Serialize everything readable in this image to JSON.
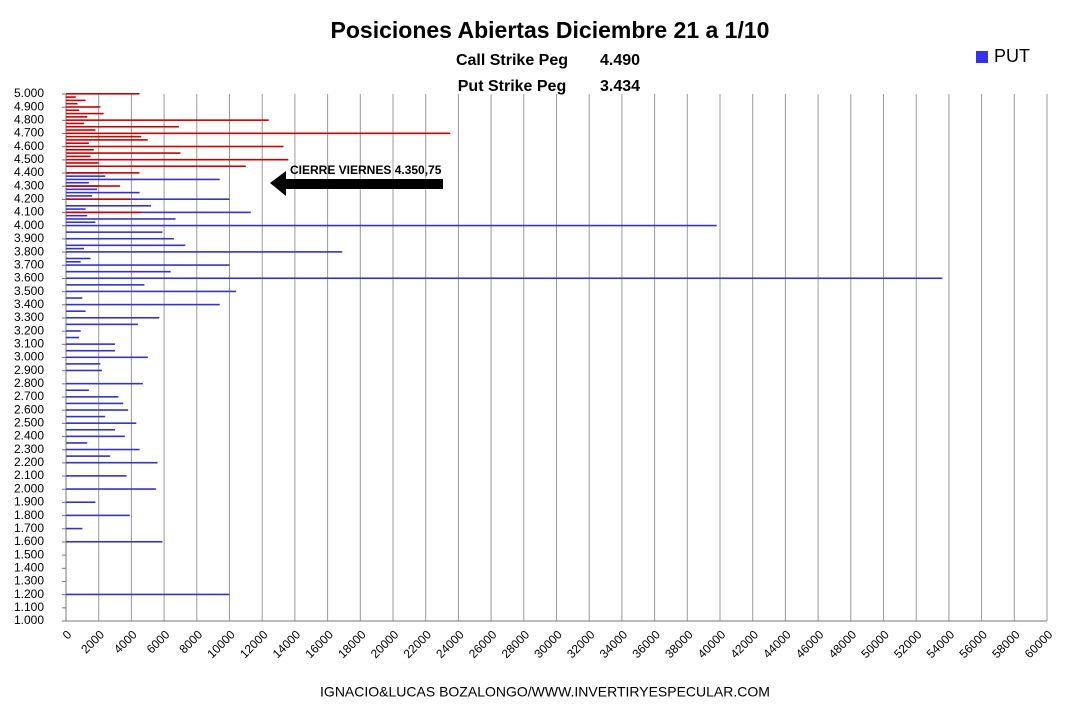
{
  "chart_data": {
    "type": "hbar",
    "title": "Posiciones Abiertas Diciembre 21 a 1/10",
    "subtitle_lines": [
      [
        "Call Strike Peg",
        "4.490"
      ],
      [
        "Put Strike Peg",
        "3.434"
      ]
    ],
    "annotation": "CIERRE VIERNES 4.350,75",
    "footer": "IGNACIO&LUCAS BOZALONGO/WWW.INVERTIRYESPECULAR.COM",
    "legend": "top-right",
    "grid": true,
    "xlim": [
      0,
      60000
    ],
    "xticks": [
      0,
      2000,
      4000,
      6000,
      8000,
      10000,
      12000,
      14000,
      16000,
      18000,
      20000,
      22000,
      24000,
      26000,
      28000,
      30000,
      32000,
      34000,
      36000,
      38000,
      40000,
      42000,
      44000,
      46000,
      48000,
      50000,
      52000,
      54000,
      56000,
      58000,
      60000
    ],
    "ylim": [
      1000,
      5000
    ],
    "yticks": [
      {
        "value": 1000,
        "label": "1.000"
      },
      {
        "value": 1100,
        "label": "1.100"
      },
      {
        "value": 1200,
        "label": "1.200"
      },
      {
        "value": 1300,
        "label": "1.300"
      },
      {
        "value": 1400,
        "label": "1.400"
      },
      {
        "value": 1500,
        "label": "1.500"
      },
      {
        "value": 1600,
        "label": "1.600"
      },
      {
        "value": 1700,
        "label": "1.700"
      },
      {
        "value": 1800,
        "label": "1.800"
      },
      {
        "value": 1900,
        "label": "1.900"
      },
      {
        "value": 2000,
        "label": "2.000"
      },
      {
        "value": 2100,
        "label": "2.100"
      },
      {
        "value": 2200,
        "label": "2.200"
      },
      {
        "value": 2300,
        "label": "2.300"
      },
      {
        "value": 2400,
        "label": "2.400"
      },
      {
        "value": 2500,
        "label": "2.500"
      },
      {
        "value": 2600,
        "label": "2.600"
      },
      {
        "value": 2700,
        "label": "2.700"
      },
      {
        "value": 2800,
        "label": "2.800"
      },
      {
        "value": 2900,
        "label": "2.900"
      },
      {
        "value": 3000,
        "label": "3.000"
      },
      {
        "value": 3100,
        "label": "3.100"
      },
      {
        "value": 3200,
        "label": "3.200"
      },
      {
        "value": 3300,
        "label": "3.300"
      },
      {
        "value": 3400,
        "label": "3.400"
      },
      {
        "value": 3500,
        "label": "3.500"
      },
      {
        "value": 3600,
        "label": "3.600"
      },
      {
        "value": 3700,
        "label": "3.700"
      },
      {
        "value": 3800,
        "label": "3.800"
      },
      {
        "value": 3900,
        "label": "3.900"
      },
      {
        "value": 4000,
        "label": "4.000"
      },
      {
        "value": 4100,
        "label": "4.100"
      },
      {
        "value": 4200,
        "label": "4.200"
      },
      {
        "value": 4300,
        "label": "4.300"
      },
      {
        "value": 4400,
        "label": "4.400"
      },
      {
        "value": 4500,
        "label": "4.500"
      },
      {
        "value": 4600,
        "label": "4.600"
      },
      {
        "value": 4700,
        "label": "4.700"
      },
      {
        "value": 4800,
        "label": "4.800"
      },
      {
        "value": 4900,
        "label": "4.900"
      },
      {
        "value": 5000,
        "label": "5.000"
      }
    ],
    "series": [
      {
        "name": "PUT",
        "color": "#3333cc",
        "x": [
          3600,
          4000,
          3800,
          4100,
          3500,
          1200,
          3700,
          4200,
          4350,
          3400,
          3850,
          3900,
          4050,
          3950,
          1600,
          3300,
          2200,
          2000,
          4150,
          3000,
          2800,
          4250,
          2500,
          2300,
          3250,
          3650,
          1800,
          2600,
          2650,
          2100,
          2400,
          3550,
          2700,
          3100,
          2450,
          3050,
          2900,
          2950,
          2550,
          2250,
          1900,
          2750,
          2350,
          1700,
          3150,
          3200,
          3350,
          3450,
          3750,
          4300,
          4400,
          3725,
          3825,
          4025,
          4075,
          4125,
          4225,
          4275,
          4325,
          4375
        ],
        "values": [
          53600,
          39800,
          16900,
          11300,
          10400,
          10000,
          10000,
          10000,
          9400,
          9400,
          7300,
          6600,
          6700,
          5900,
          5900,
          5700,
          5600,
          5500,
          5200,
          5000,
          4700,
          4500,
          4300,
          4500,
          4400,
          6400,
          3900,
          3800,
          3500,
          3700,
          3600,
          4800,
          3200,
          3000,
          3000,
          3000,
          2200,
          2100,
          2400,
          2700,
          1800,
          1400,
          1300,
          1000,
          800,
          900,
          1200,
          1000,
          1500,
          2000,
          2200,
          900,
          1100,
          1800,
          1300,
          1200,
          1600,
          1900,
          1400,
          2400
        ]
      },
      {
        "color": "#cc0000",
        "x": [
          4700,
          4500,
          4600,
          4800,
          4450,
          5000,
          4550,
          4750,
          4650,
          4675,
          4400,
          4100,
          4200,
          4900,
          4850,
          4950,
          4300,
          4725,
          4525,
          4575,
          4625,
          4775,
          4825,
          4875,
          4975,
          4925,
          4475
        ],
        "values": [
          23500,
          13600,
          13300,
          12400,
          11000,
          4500,
          7000,
          6900,
          5000,
          4600,
          4500,
          4600,
          3900,
          2100,
          2300,
          1200,
          3300,
          1800,
          1500,
          1700,
          1400,
          1100,
          1300,
          800,
          600,
          700,
          2000
        ]
      }
    ]
  }
}
